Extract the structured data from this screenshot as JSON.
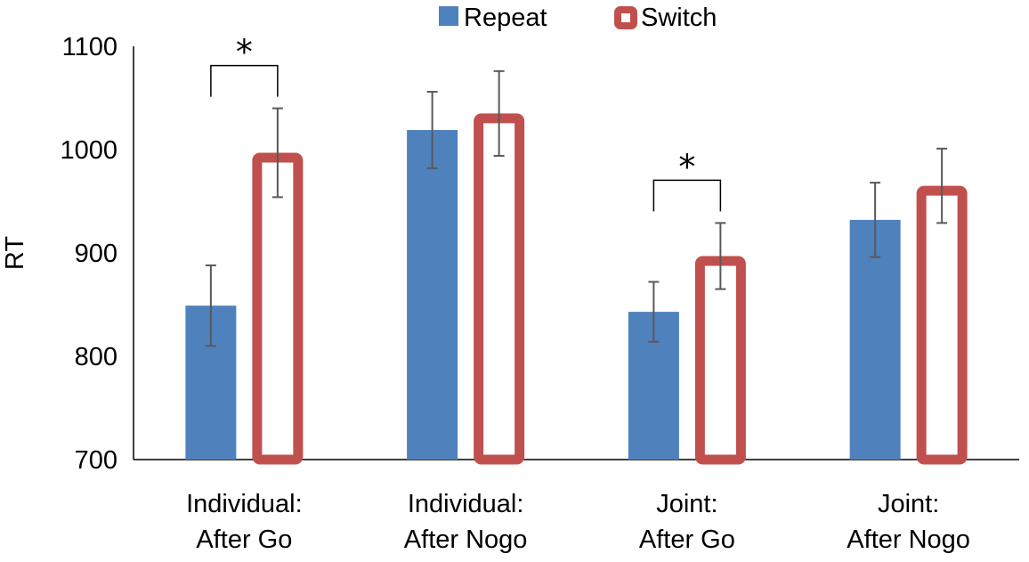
{
  "chart_data": {
    "type": "bar",
    "title": "",
    "xlabel": "",
    "ylabel": "RT",
    "ylim": [
      700,
      1100
    ],
    "yticks": [
      700,
      800,
      900,
      1000,
      1100
    ],
    "categories": [
      [
        "Individual:",
        "After Go"
      ],
      [
        "Individual:",
        "After Nogo"
      ],
      [
        "Joint:",
        "After Go"
      ],
      [
        "Joint:",
        "After Nogo"
      ]
    ],
    "series": [
      {
        "name": "Repeat",
        "style": "filled",
        "color": "#4F81BD",
        "values": [
          849,
          1019,
          843,
          932
        ],
        "errors": [
          39,
          37,
          29,
          36
        ]
      },
      {
        "name": "Switch",
        "style": "outline",
        "color": "#C0504D",
        "values": [
          997,
          1035,
          897,
          965
        ],
        "errors": [
          43,
          41,
          32,
          36
        ]
      }
    ],
    "legend_position": "top-center",
    "significance": [
      {
        "category_index": 0,
        "label": "*"
      },
      {
        "category_index": 2,
        "label": "*"
      }
    ],
    "grid": false
  }
}
